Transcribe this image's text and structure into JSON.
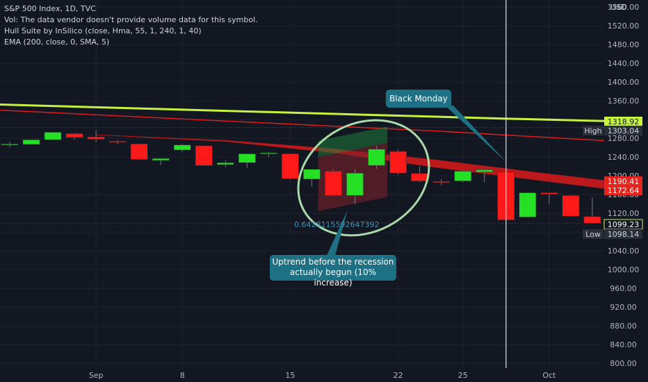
{
  "header": {
    "title": "S&P 500 Index, 1D, TVC",
    "vol_note": "Vol: The data vendor doesn't provide volume data for this symbol.",
    "hull_indicator": "Hull Suite by InSilico (close, Hma, 55, 1, 240, 1, 40)",
    "ema_indicator": "EMA (200, close, 0, SMA, 5)"
  },
  "annotations": {
    "black_monday": "Black Monday",
    "uptrend_line1": "Uptrend before the recession",
    "uptrend_line2": "actually begun (10% increase)",
    "fib_label": "0.6428115592647392"
  },
  "price_labels": {
    "currency": "USD",
    "high_tag": "High",
    "high_value": "1303.04",
    "low_tag": "Low",
    "low_value": "1098.14",
    "ema_value": "1318.92",
    "hull_upper": "1190.41",
    "hull_lower": "1172.64",
    "last_price": "1099.23"
  },
  "colors": {
    "up": "#26e026",
    "down": "#ff1a1a",
    "ema_line": "#c6f33f",
    "hull_band": "#d91a1a",
    "red_line": "#e01a1a",
    "callout": "#1e7185",
    "ellipse": "#a9d8a9",
    "background": "#131722"
  },
  "chart_data": {
    "type": "candlestick",
    "symbol": "S&P 500 Index",
    "interval": "1D",
    "source": "TVC",
    "y_unit": "USD",
    "y_ticks": [
      800,
      840,
      880,
      920,
      960,
      1000,
      1040,
      1080,
      1120,
      1160,
      1200,
      1240,
      1280,
      1320,
      1360,
      1400,
      1440,
      1480,
      1520,
      1560
    ],
    "ylim": [
      790,
      1575
    ],
    "x_ticks": [
      {
        "label": "Sep",
        "slot": 4
      },
      {
        "label": "8",
        "slot": 8
      },
      {
        "label": "15",
        "slot": 13
      },
      {
        "label": "22",
        "slot": 18
      },
      {
        "label": "25",
        "slot": 21
      },
      {
        "label": "Oct",
        "slot": 25
      }
    ],
    "xlim": [
      -0.45,
      27.55
    ],
    "candles": [
      {
        "o": 1268,
        "h": 1272,
        "l": 1261,
        "c": 1268
      },
      {
        "o": 1267,
        "h": 1277,
        "l": 1266,
        "c": 1277
      },
      {
        "o": 1277,
        "h": 1294,
        "l": 1276,
        "c": 1293
      },
      {
        "o": 1290,
        "h": 1292,
        "l": 1278,
        "c": 1282
      },
      {
        "o": 1283,
        "h": 1298,
        "l": 1272,
        "c": 1278
      },
      {
        "o": 1274,
        "h": 1276,
        "l": 1267,
        "c": 1272
      },
      {
        "o": 1268,
        "h": 1269,
        "l": 1233,
        "c": 1235
      },
      {
        "o": 1233,
        "h": 1236,
        "l": 1223,
        "c": 1237
      },
      {
        "o": 1255,
        "h": 1268,
        "l": 1251,
        "c": 1266
      },
      {
        "o": 1264,
        "h": 1265,
        "l": 1221,
        "c": 1222
      },
      {
        "o": 1224,
        "h": 1233,
        "l": 1218,
        "c": 1228
      },
      {
        "o": 1228,
        "h": 1247,
        "l": 1217,
        "c": 1247
      },
      {
        "o": 1247,
        "h": 1251,
        "l": 1240,
        "c": 1249
      },
      {
        "o": 1247,
        "h": 1248,
        "l": 1192,
        "c": 1194
      },
      {
        "o": 1193,
        "h": 1213,
        "l": 1178,
        "c": 1214
      },
      {
        "o": 1210,
        "h": 1214,
        "l": 1156,
        "c": 1158
      },
      {
        "o": 1158,
        "h": 1215,
        "l": 1140,
        "c": 1206
      },
      {
        "o": 1222,
        "h": 1264,
        "l": 1215,
        "c": 1257
      },
      {
        "o": 1252,
        "h": 1256,
        "l": 1203,
        "c": 1206
      },
      {
        "o": 1205,
        "h": 1220,
        "l": 1186,
        "c": 1189
      },
      {
        "o": 1188,
        "h": 1193,
        "l": 1180,
        "c": 1186
      },
      {
        "o": 1189,
        "h": 1211,
        "l": 1186,
        "c": 1210
      },
      {
        "o": 1208,
        "h": 1212,
        "l": 1186,
        "c": 1213
      },
      {
        "o": 1208,
        "h": 1210,
        "l": 1106,
        "c": 1106
      },
      {
        "o": 1112,
        "h": 1165,
        "l": 1112,
        "c": 1164
      },
      {
        "o": 1164,
        "h": 1164,
        "l": 1140,
        "c": 1161
      },
      {
        "o": 1158,
        "h": 1160,
        "l": 1113,
        "c": 1114
      },
      {
        "o": 1113,
        "h": 1153,
        "l": 1099,
        "c": 1099
      }
    ],
    "ema_line": [
      {
        "slot": -0.45,
        "value": 1352
      },
      {
        "slot": 23,
        "value": 1322
      },
      {
        "slot": 27.55,
        "value": 1317
      }
    ],
    "red_line": [
      {
        "slot": -0.45,
        "value": 1340
      },
      {
        "slot": 10,
        "value": 1317
      },
      {
        "slot": 20,
        "value": 1295
      },
      {
        "slot": 27.55,
        "value": 1275
      }
    ],
    "hull_band_upper": [
      {
        "slot": 4,
        "value": 1288
      },
      {
        "slot": 10,
        "value": 1276
      },
      {
        "slot": 15,
        "value": 1258
      },
      {
        "slot": 20,
        "value": 1233
      },
      {
        "slot": 24,
        "value": 1210
      },
      {
        "slot": 27.55,
        "value": 1190.41
      }
    ],
    "hull_band_lower": [
      {
        "slot": 4,
        "value": 1287
      },
      {
        "slot": 10,
        "value": 1273
      },
      {
        "slot": 15,
        "value": 1249
      },
      {
        "slot": 20,
        "value": 1216
      },
      {
        "slot": 24,
        "value": 1193
      },
      {
        "slot": 27.55,
        "value": 1172.64
      }
    ],
    "forecast_box": {
      "start_slot": 14.3,
      "end_slot": 17.5,
      "start_base": 1240,
      "start_low": 1125,
      "end_base": 1270,
      "end_high": 1305,
      "end_low": 1155
    },
    "fib_level": 1099.23,
    "black_monday_slot": 23,
    "high": 1303.04,
    "low": 1098.14,
    "last": 1099.23
  }
}
